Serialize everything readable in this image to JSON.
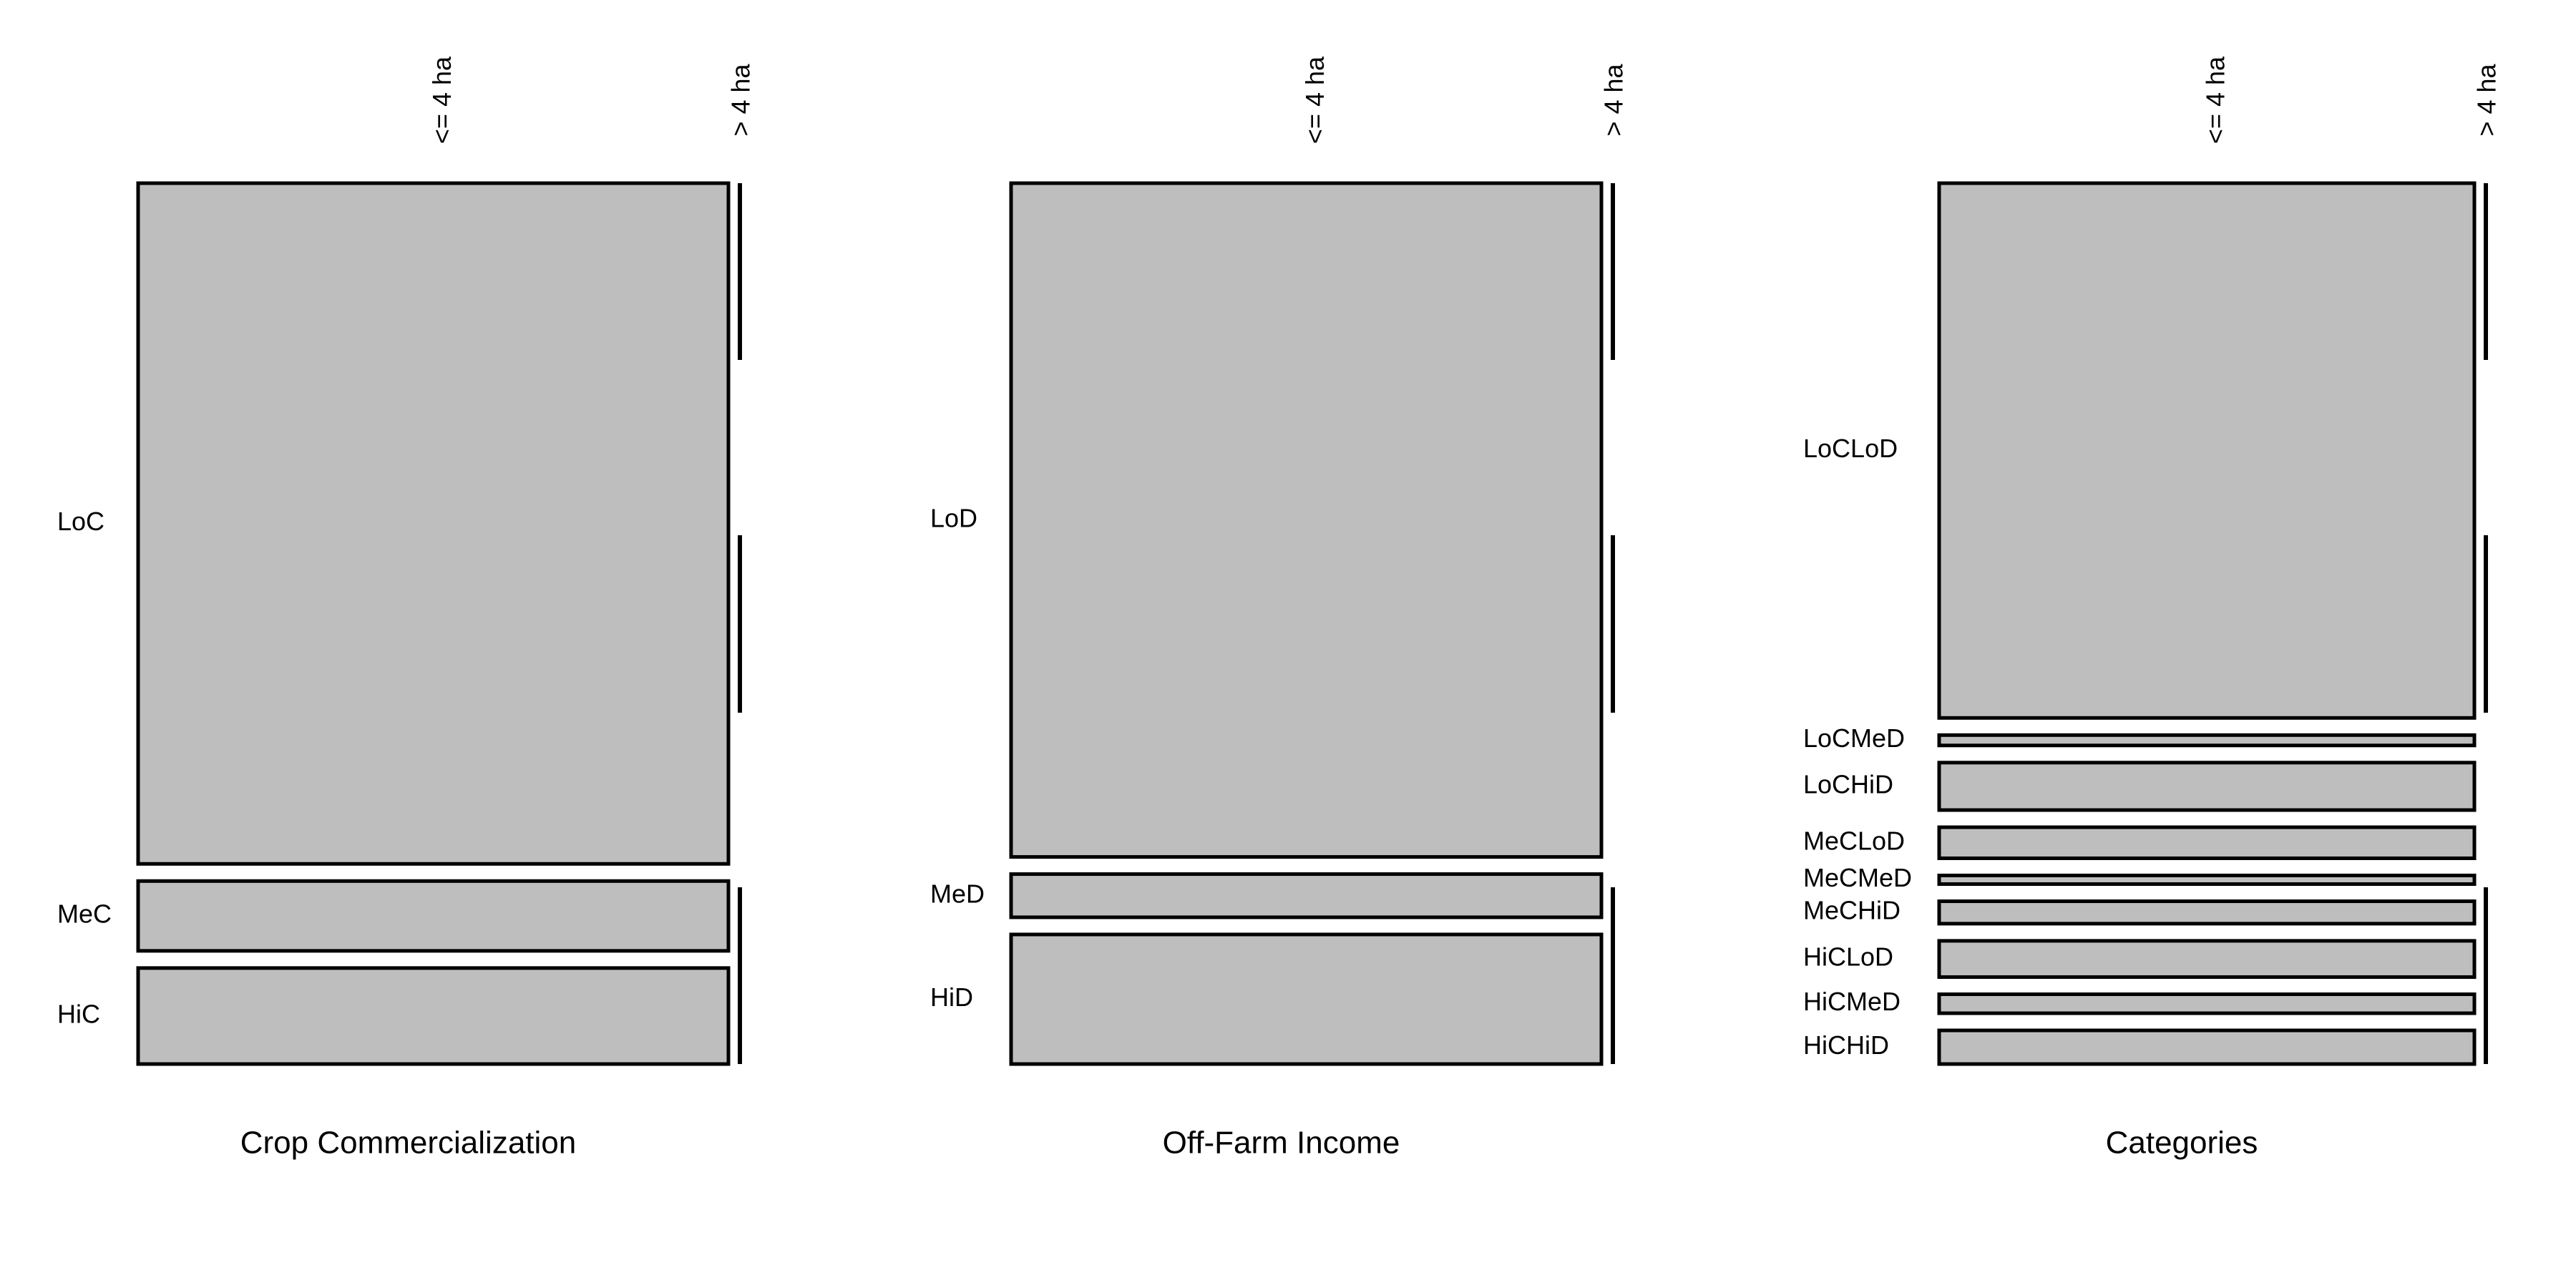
{
  "chart_data": [
    {
      "type": "mosaic",
      "title": "Crop Commercialization",
      "x_categories": [
        "<= 4 ha",
        "> 4 ha"
      ],
      "rows": [
        {
          "label": "LoC",
          "values": [
            1.0,
            0.0
          ]
        },
        {
          "label": "MeC",
          "values": [
            1.0,
            0.0
          ]
        },
        {
          "label": "HiC",
          "values": [
            1.0,
            0.0
          ]
        }
      ],
      "row_shares": [
        0.78,
        0.08,
        0.11
      ]
    },
    {
      "type": "mosaic",
      "title": "Off-Farm Income",
      "x_categories": [
        "<= 4 ha",
        "> 4 ha"
      ],
      "rows": [
        {
          "label": "LoD",
          "values": [
            1.0,
            0.0
          ]
        },
        {
          "label": "MeD",
          "values": [
            1.0,
            0.0
          ]
        },
        {
          "label": "HiD",
          "values": [
            1.0,
            0.0
          ]
        }
      ],
      "row_shares": [
        0.78,
        0.05,
        0.15
      ]
    },
    {
      "type": "mosaic",
      "title": "Categories",
      "x_categories": [
        "<= 4 ha",
        "> 4 ha"
      ],
      "rows": [
        {
          "label": "LoCLoD",
          "values": [
            1.0,
            0.0
          ]
        },
        {
          "label": "LoCMeD",
          "values": [
            1.0,
            0.0
          ]
        },
        {
          "label": "LoCHiD",
          "values": [
            1.0,
            0.0
          ]
        },
        {
          "label": "MeCLoD",
          "values": [
            1.0,
            0.0
          ]
        },
        {
          "label": "MeCMeD",
          "values": [
            1.0,
            0.0
          ]
        },
        {
          "label": "MeCHiD",
          "values": [
            1.0,
            0.0
          ]
        },
        {
          "label": "HiCLoD",
          "values": [
            1.0,
            0.0
          ]
        },
        {
          "label": "HiCMeD",
          "values": [
            1.0,
            0.0
          ]
        },
        {
          "label": "HiCHiD",
          "values": [
            1.0,
            0.0
          ]
        }
      ],
      "row_shares": [
        0.62,
        0.012,
        0.055,
        0.036,
        0.01,
        0.026,
        0.042,
        0.022,
        0.039
      ]
    }
  ],
  "colors": {
    "cell_fill": "#bebebe",
    "stroke": "#000000",
    "background": "#ffffff"
  }
}
